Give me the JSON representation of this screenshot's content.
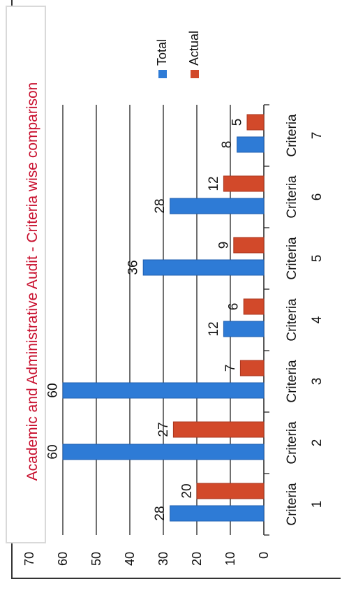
{
  "chart_data": {
    "type": "bar",
    "title": "Academic and Administrative Audit - Criteria wise comparison",
    "categories": [
      "Criteria 1",
      "Criteria 2",
      "Criteria 3",
      "Criteria 4",
      "Criteria 5",
      "Criteria 6",
      "Criteria 7"
    ],
    "series": [
      {
        "name": "Total",
        "color": "#2e7bd6",
        "values": [
          28,
          60,
          60,
          12,
          36,
          28,
          8
        ]
      },
      {
        "name": "Actual",
        "color": "#d2492a",
        "values": [
          20,
          27,
          7,
          6,
          9,
          12,
          5
        ]
      }
    ],
    "ylim": [
      0,
      70
    ],
    "yticks": [
      0,
      10,
      20,
      30,
      40,
      50,
      60,
      70
    ],
    "grid": true,
    "legend": "top-right"
  }
}
